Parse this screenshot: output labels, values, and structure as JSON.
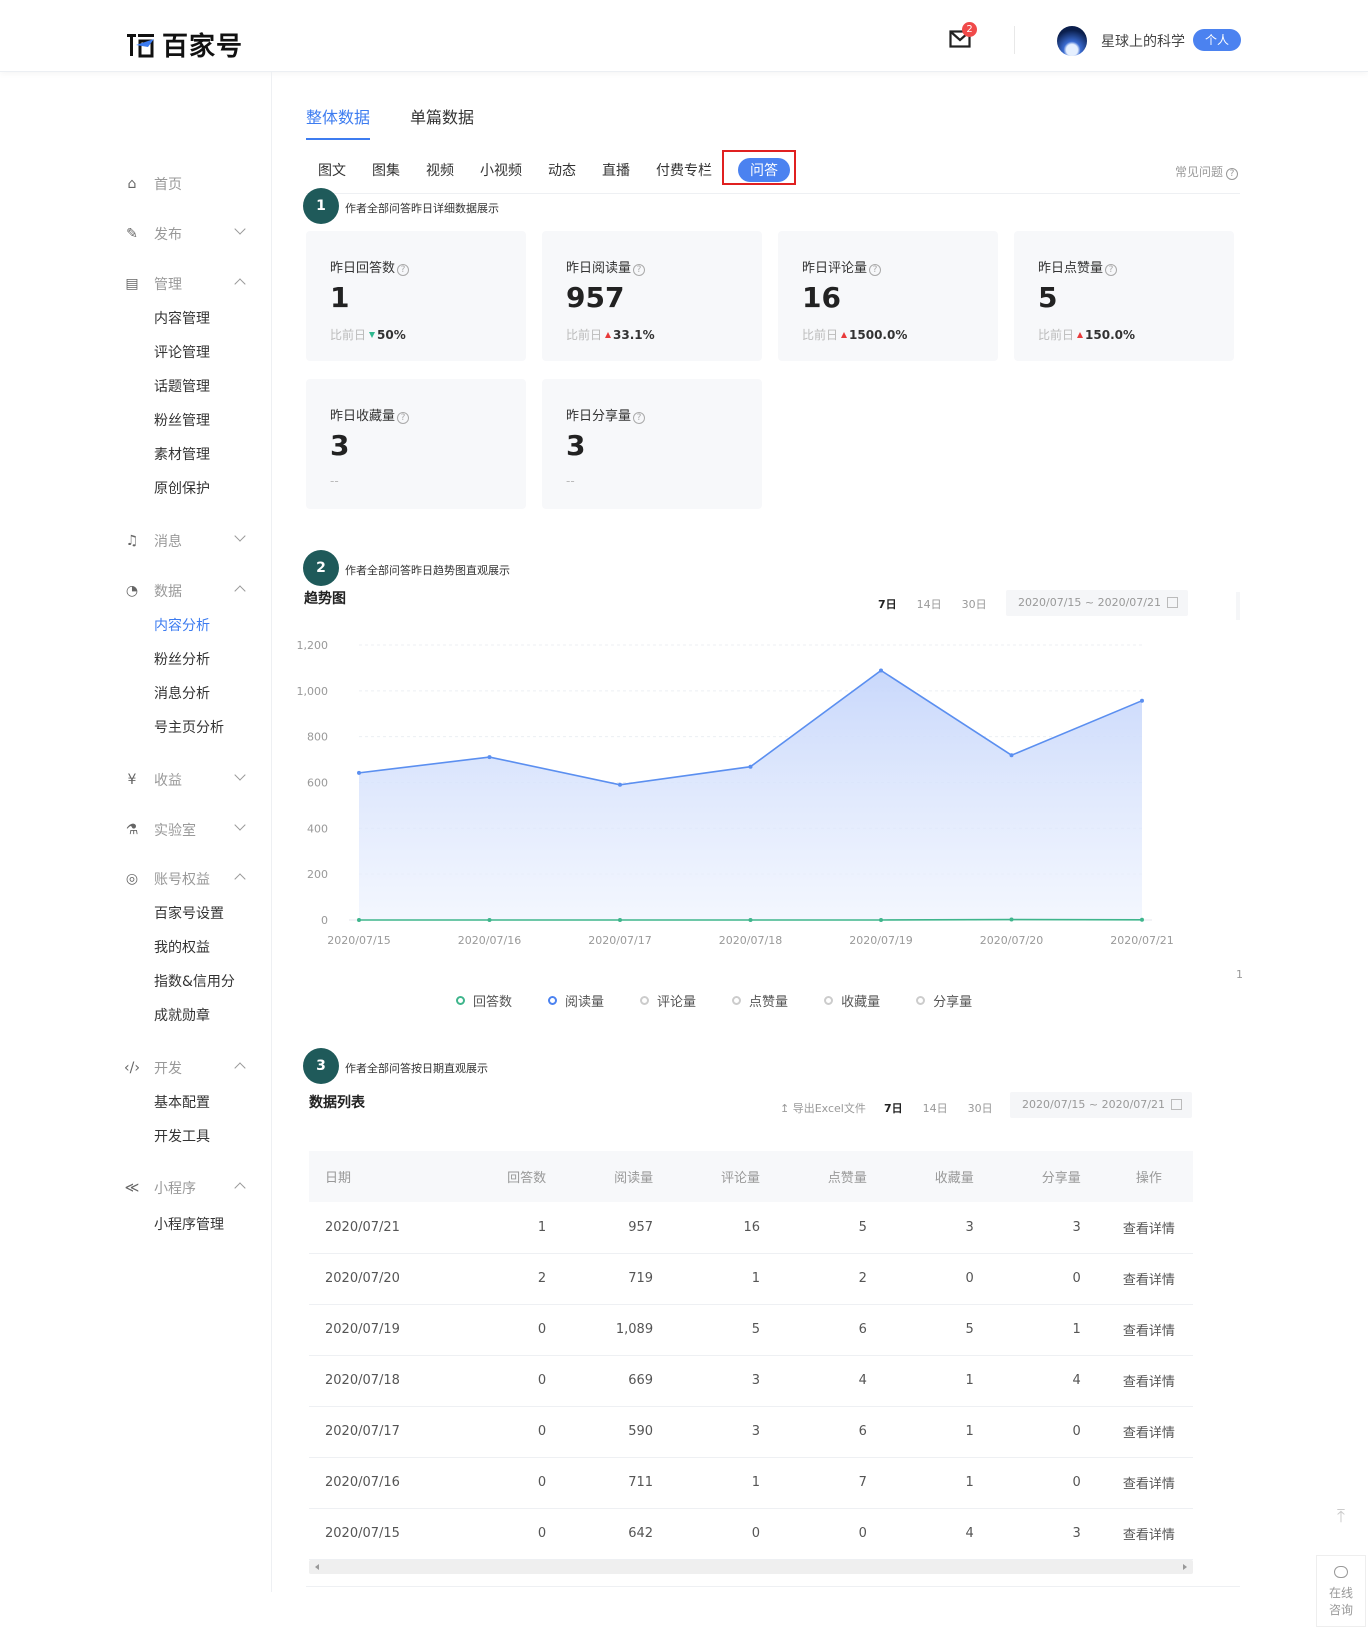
{
  "header": {
    "logo_text": "百家号",
    "mail_count": "2",
    "username": "星球上的科学",
    "user_badge": "个人"
  },
  "sidebar": {
    "groups": [
      {
        "label": "首页",
        "icon": "home-icon"
      },
      {
        "label": "发布",
        "icon": "edit-icon"
      },
      {
        "label": "管理",
        "icon": "manage-icon",
        "items": [
          "内容管理",
          "评论管理",
          "话题管理",
          "粉丝管理",
          "素材管理",
          "原创保护"
        ]
      },
      {
        "label": "消息",
        "icon": "bell-icon"
      },
      {
        "label": "数据",
        "icon": "pie-chart-icon",
        "items": [
          "内容分析",
          "粉丝分析",
          "消息分析",
          "号主页分析"
        ]
      },
      {
        "label": "收益",
        "icon": "yuan-icon"
      },
      {
        "label": "实验室",
        "icon": "lab-icon"
      },
      {
        "label": "账号权益",
        "icon": "badge-icon",
        "items": [
          "百家号设置",
          "我的权益",
          "指数&信用分",
          "成就勋章"
        ]
      },
      {
        "label": "开发",
        "icon": "code-icon",
        "items": [
          "基本配置",
          "开发工具"
        ]
      },
      {
        "label": "小程序",
        "icon": "miniapp-icon",
        "items": [
          "小程序管理"
        ]
      }
    ],
    "active_item": "内容分析"
  },
  "main_tabs": [
    "整体数据",
    "单篇数据"
  ],
  "sub_tabs": [
    "图文",
    "图集",
    "视频",
    "小视频",
    "动态",
    "直播",
    "付费专栏",
    "问答"
  ],
  "faq_label": "常见问题",
  "steps": {
    "s1": {
      "num": "1",
      "note": "作者全部问答昨日详细数据展示"
    },
    "s2": {
      "num": "2",
      "note": "作者全部问答昨日趋势图直观展示"
    },
    "s3": {
      "num": "3",
      "note": "作者全部问答按日期直观展示"
    }
  },
  "cards": [
    {
      "label": "昨日回答数",
      "value": "1",
      "cmp_label": "比前日",
      "trend": "down",
      "pct": "50%"
    },
    {
      "label": "昨日阅读量",
      "value": "957",
      "cmp_label": "比前日",
      "trend": "up",
      "pct": "33.1%"
    },
    {
      "label": "昨日评论量",
      "value": "16",
      "cmp_label": "比前日",
      "trend": "up",
      "pct": "1500.0%"
    },
    {
      "label": "昨日点赞量",
      "value": "5",
      "cmp_label": "比前日",
      "trend": "up",
      "pct": "150.0%"
    },
    {
      "label": "昨日收藏量",
      "value": "3",
      "cmp_label": "--",
      "trend": "",
      "pct": ""
    },
    {
      "label": "昨日分享量",
      "value": "3",
      "cmp_label": "--",
      "trend": "",
      "pct": ""
    }
  ],
  "trend": {
    "title": "趋势图",
    "ranges": [
      "7日",
      "14日",
      "30日"
    ],
    "date_range": "2020/07/15 ~ 2020/07/21"
  },
  "chart_data": {
    "type": "area",
    "title": "趋势图",
    "x": [
      "2020/07/15",
      "2020/07/16",
      "2020/07/17",
      "2020/07/18",
      "2020/07/19",
      "2020/07/20",
      "2020/07/21"
    ],
    "yticks": [
      "0",
      "200",
      "400",
      "600",
      "800",
      "1,000",
      "1,200"
    ],
    "ylim": [
      0,
      1200
    ],
    "series": [
      {
        "name": "回答数",
        "values": [
          0,
          0,
          0,
          0,
          0,
          2,
          1
        ],
        "color": "#3fb58c"
      },
      {
        "name": "阅读量",
        "values": [
          642,
          711,
          590,
          669,
          1089,
          719,
          957
        ],
        "color": "#5b8ff0"
      }
    ],
    "legend": [
      "回答数",
      "阅读量",
      "评论量",
      "点赞量",
      "收藏量",
      "分享量"
    ],
    "legend_colors": [
      "#3fb58c",
      "#4b82f0",
      "#cccccc",
      "#cccccc",
      "#cccccc",
      "#cccccc"
    ],
    "legend_position": "bottom"
  },
  "stray_label": "1",
  "table": {
    "title": "数据列表",
    "export_label": "导出Excel文件",
    "ranges": [
      "7日",
      "14日",
      "30日"
    ],
    "date_range": "2020/07/15 ~ 2020/07/21",
    "columns": [
      "日期",
      "回答数",
      "阅读量",
      "评论量",
      "点赞量",
      "收藏量",
      "分享量",
      "操作"
    ],
    "rows": [
      [
        "2020/07/21",
        "1",
        "957",
        "16",
        "5",
        "3",
        "3",
        "查看详情"
      ],
      [
        "2020/07/20",
        "2",
        "719",
        "1",
        "2",
        "0",
        "0",
        "查看详情"
      ],
      [
        "2020/07/19",
        "0",
        "1,089",
        "5",
        "6",
        "5",
        "1",
        "查看详情"
      ],
      [
        "2020/07/18",
        "0",
        "669",
        "3",
        "4",
        "1",
        "4",
        "查看详情"
      ],
      [
        "2020/07/17",
        "0",
        "590",
        "3",
        "6",
        "1",
        "0",
        "查看详情"
      ],
      [
        "2020/07/16",
        "0",
        "711",
        "1",
        "7",
        "1",
        "0",
        "查看详情"
      ],
      [
        "2020/07/15",
        "0",
        "642",
        "0",
        "0",
        "4",
        "3",
        "查看详情"
      ]
    ]
  },
  "fab": {
    "chat_label_1": "在线",
    "chat_label_2": "咨询"
  }
}
